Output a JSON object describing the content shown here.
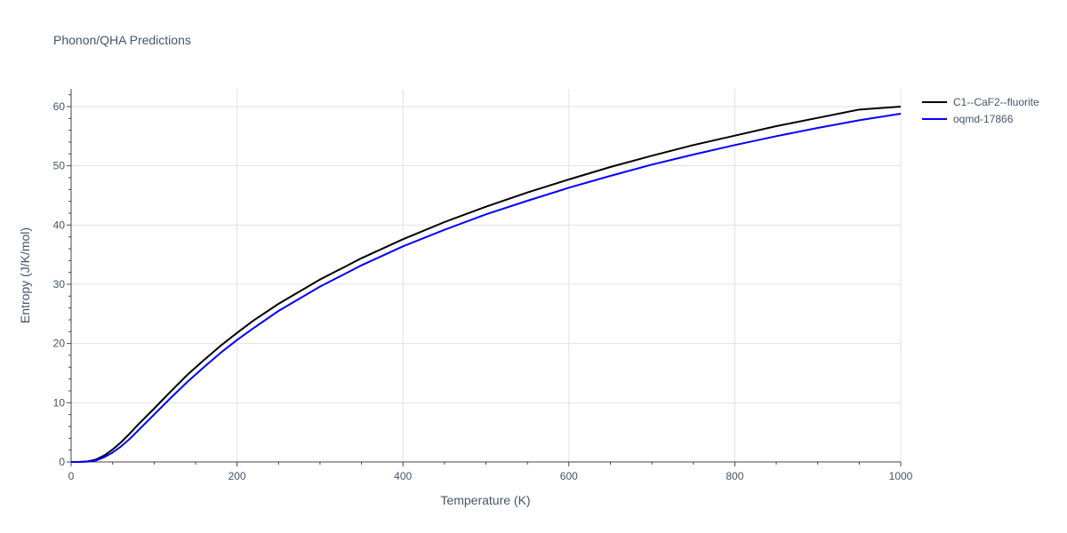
{
  "chart_data": {
    "type": "line",
    "title": "Phonon/QHA Predictions",
    "xlabel": "Temperature (K)",
    "ylabel": "Entropy (J/K/mol)",
    "xlim": [
      0,
      1000
    ],
    "ylim": [
      0,
      63
    ],
    "xticks": [
      0,
      200,
      400,
      600,
      800,
      1000
    ],
    "yticks": [
      0,
      10,
      20,
      30,
      40,
      50,
      60
    ],
    "grid": true,
    "legend_position": "top-right",
    "series": [
      {
        "name": "C1--CaF2--fluorite",
        "color": "#000000",
        "x": [
          0,
          10,
          20,
          30,
          40,
          50,
          60,
          70,
          80,
          100,
          120,
          140,
          160,
          180,
          200,
          220,
          250,
          300,
          350,
          400,
          450,
          500,
          550,
          600,
          650,
          700,
          750,
          800,
          850,
          900,
          950,
          1000
        ],
        "y": [
          0,
          0,
          0.1,
          0.4,
          1.1,
          2.1,
          3.3,
          4.7,
          6.2,
          9.0,
          11.9,
          14.7,
          17.2,
          19.6,
          21.8,
          23.9,
          26.7,
          30.8,
          34.4,
          37.6,
          40.5,
          43.1,
          45.5,
          47.7,
          49.8,
          51.7,
          53.5,
          55.1,
          56.7,
          58.1,
          59.5,
          60.0
        ]
      },
      {
        "name": "oqmd-17866",
        "color": "#0000ff",
        "x": [
          0,
          10,
          20,
          30,
          40,
          50,
          60,
          70,
          80,
          100,
          120,
          140,
          160,
          180,
          200,
          220,
          250,
          300,
          350,
          400,
          450,
          500,
          550,
          600,
          650,
          700,
          750,
          800,
          850,
          900,
          950,
          1000
        ],
        "y": [
          0,
          0,
          0.05,
          0.25,
          0.8,
          1.6,
          2.6,
          3.8,
          5.2,
          8.0,
          10.8,
          13.5,
          16.0,
          18.4,
          20.6,
          22.6,
          25.5,
          29.6,
          33.2,
          36.4,
          39.2,
          41.8,
          44.1,
          46.3,
          48.3,
          50.2,
          51.9,
          53.5,
          55.0,
          56.4,
          57.7,
          58.8
        ]
      }
    ]
  }
}
